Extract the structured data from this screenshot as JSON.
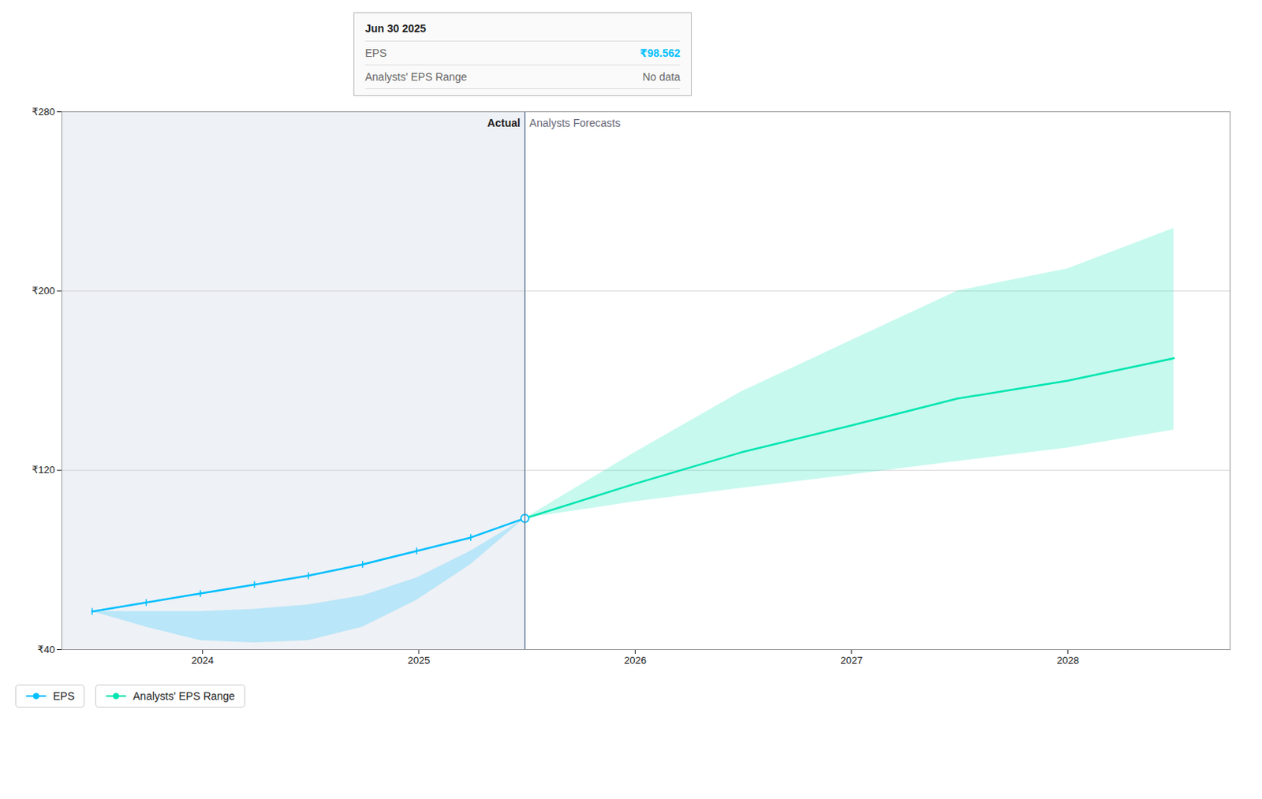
{
  "chart_data": {
    "type": "line",
    "xlim": [
      2023.35,
      2028.75
    ],
    "xticks": [
      2024,
      2025,
      2026,
      2027,
      2028
    ],
    "ylim": [
      40,
      280
    ],
    "yticks": [
      {
        "value": 40,
        "label": "₹40"
      },
      {
        "value": 120,
        "label": "₹120"
      },
      {
        "value": 200,
        "label": "₹200"
      },
      {
        "value": 280,
        "label": "₹280"
      }
    ],
    "grid": true,
    "divider": 2025.49,
    "annotations": [
      {
        "text": "Actual",
        "x": 2025.49,
        "side": "left"
      },
      {
        "text": "Analysts Forecasts",
        "x": 2025.49,
        "side": "right"
      }
    ],
    "series": [
      {
        "type": "area",
        "color": "#00bfff",
        "x": [
          2023.49,
          2023.74,
          2023.99,
          2024.24,
          2024.49,
          2024.74,
          2024.99,
          2025.24,
          2025.49
        ],
        "lower": [
          57,
          50,
          44,
          43,
          44,
          50,
          62,
          78,
          98.562
        ],
        "upper": [
          57,
          57,
          57,
          58,
          60,
          64,
          72,
          84,
          98.562
        ]
      },
      {
        "type": "area",
        "color": "#00e5b0",
        "x": [
          2025.49,
          2026.0,
          2026.49,
          2027.0,
          2027.49,
          2028.0,
          2028.49
        ],
        "lower": [
          98.562,
          106,
          112,
          118,
          124,
          130,
          138
        ],
        "upper": [
          98.562,
          128,
          155,
          178,
          200,
          210,
          228
        ]
      },
      {
        "type": "line",
        "name": "EPS",
        "color": "#00bfff",
        "marker": "tick",
        "x": [
          2023.49,
          2023.74,
          2023.99,
          2024.24,
          2024.49,
          2024.74,
          2024.99,
          2025.24,
          2025.49
        ],
        "values": [
          57,
          61,
          65,
          69,
          73,
          78,
          84,
          90,
          98.562
        ]
      },
      {
        "type": "line",
        "name": "Analysts' EPS Range",
        "color": "#00e5b0",
        "x": [
          2025.49,
          2026.0,
          2026.49,
          2027.0,
          2027.49,
          2028.0,
          2028.49
        ],
        "values": [
          98.562,
          114,
          128,
          140,
          152,
          160,
          170
        ]
      }
    ],
    "tooltip": {
      "title": "Jun 30 2025",
      "rows": [
        {
          "label": "EPS",
          "value": "₹98.562"
        },
        {
          "label": "Analysts' EPS Range",
          "value": "No data"
        }
      ]
    }
  }
}
